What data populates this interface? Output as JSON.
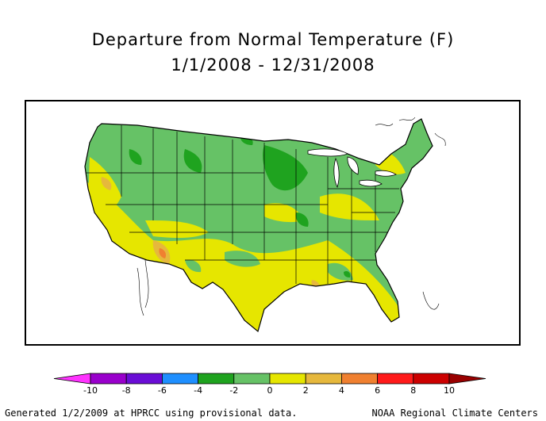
{
  "title": {
    "line1": "Departure from Normal Temperature (F)",
    "line2": "1/1/2008 - 12/31/2008"
  },
  "map": {
    "region": "Contiguous United States",
    "dominant_class": "0 to 2",
    "anomaly_classes_present": [
      "-4 to -2",
      "-2 to 0",
      "0 to 2",
      "2 to 4",
      "4 to 6"
    ]
  },
  "legend": {
    "tick_labels": [
      "-10",
      "-8",
      "-6",
      "-4",
      "-2",
      "0",
      "2",
      "4",
      "6",
      "8",
      "10"
    ],
    "bins": [
      {
        "from": -12,
        "to": -10,
        "color": "#ff33ff"
      },
      {
        "from": -10,
        "to": -8,
        "color": "#9900cc"
      },
      {
        "from": -8,
        "to": -6,
        "color": "#6a0dd6"
      },
      {
        "from": -6,
        "to": -4,
        "color": "#1f8fff"
      },
      {
        "from": -4,
        "to": -2,
        "color": "#1fa31f"
      },
      {
        "from": -2,
        "to": 0,
        "color": "#66c266"
      },
      {
        "from": 0,
        "to": 2,
        "color": "#e6e600"
      },
      {
        "from": 2,
        "to": 4,
        "color": "#e6b83c"
      },
      {
        "from": 4,
        "to": 6,
        "color": "#f08030"
      },
      {
        "from": 6,
        "to": 8,
        "color": "#ff1a1a"
      },
      {
        "from": 8,
        "to": 10,
        "color": "#cc0000"
      },
      {
        "from": 10,
        "to": 12,
        "color": "#990000"
      }
    ]
  },
  "footer": {
    "left": "Generated 1/2/2009 at HPRCC using provisional data.",
    "right": "NOAA Regional Climate Centers"
  }
}
